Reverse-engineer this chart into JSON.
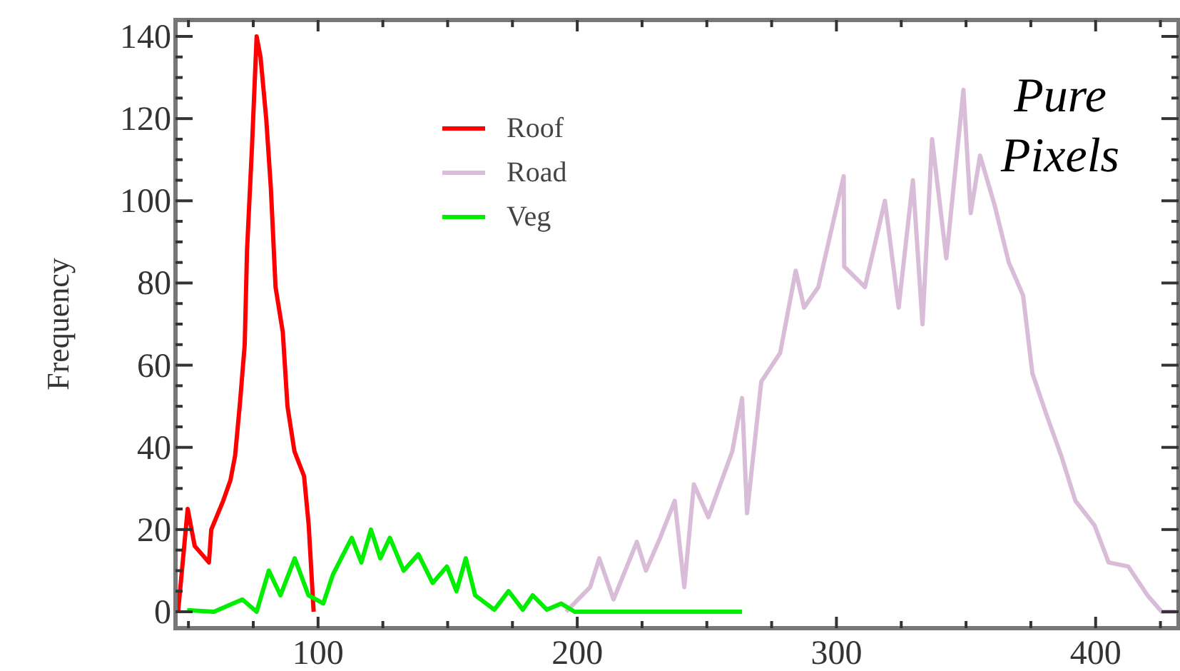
{
  "chart_data": {
    "type": "line",
    "ylabel": "Frequency",
    "annotations": [
      "Pure Pixels"
    ],
    "legend": "top",
    "grid": false,
    "xlim": [
      45,
      432
    ],
    "ylim": [
      -4,
      144
    ],
    "xticks": [
      {
        "value": 50,
        "label": null
      },
      {
        "value": 75,
        "label": null
      },
      100,
      {
        "value": 125,
        "label": null
      },
      {
        "value": 150,
        "label": null
      },
      {
        "value": 175,
        "label": null
      },
      200,
      {
        "value": 225,
        "label": null
      },
      {
        "value": 250,
        "label": null
      },
      {
        "value": 275,
        "label": null
      },
      300,
      {
        "value": 325,
        "label": null
      },
      {
        "value": 350,
        "label": null
      },
      {
        "value": 375,
        "label": null
      },
      400,
      {
        "value": 425,
        "label": null
      }
    ],
    "yticks": [
      0,
      {
        "value": 5,
        "label": null
      },
      {
        "value": 10,
        "label": null
      },
      {
        "value": 15,
        "label": null
      },
      20,
      {
        "value": 25,
        "label": null
      },
      {
        "value": 30,
        "label": null
      },
      {
        "value": 35,
        "label": null
      },
      40,
      {
        "value": 45,
        "label": null
      },
      {
        "value": 50,
        "label": null
      },
      {
        "value": 55,
        "label": null
      },
      60,
      {
        "value": 65,
        "label": null
      },
      {
        "value": 70,
        "label": null
      },
      {
        "value": 75,
        "label": null
      },
      80,
      {
        "value": 85,
        "label": null
      },
      {
        "value": 90,
        "label": null
      },
      {
        "value": 95,
        "label": null
      },
      100,
      {
        "value": 105,
        "label": null
      },
      {
        "value": 110,
        "label": null
      },
      {
        "value": 115,
        "label": null
      },
      120,
      {
        "value": 125,
        "label": null
      },
      {
        "value": 130,
        "label": null
      },
      {
        "value": 135,
        "label": null
      },
      140
    ],
    "series": [
      {
        "name": "Roof",
        "color": "#ff0000",
        "x": [
          46,
          49.7,
          52.4,
          57.9,
          58.8,
          63.4,
          66.2,
          68,
          69.9,
          71.7,
          72.6,
          74.5,
          76.3,
          77.8,
          80,
          81.8,
          83.6,
          86.4,
          88.2,
          90.9,
          94.6,
          96.4,
          98.3
        ],
        "values": [
          0,
          25,
          16,
          12,
          20,
          27,
          32,
          38,
          51,
          65,
          88,
          113,
          140,
          135,
          120,
          103,
          79,
          68,
          50,
          39,
          33,
          21,
          0
        ]
      },
      {
        "name": "Road",
        "color": "#d8bcd8",
        "x": [
          195.7,
          205,
          208.5,
          214,
          223,
          226.5,
          232,
          237.6,
          241.3,
          245,
          250.6,
          259.8,
          263.6,
          265.5,
          271,
          278.3,
          284.3,
          287.5,
          293,
          302.8,
          303,
          311,
          318.7,
          324,
          329.5,
          333.2,
          336.9,
          342.4,
          349,
          351.8,
          355.4,
          361,
          366.5,
          372,
          375.6,
          381,
          386.7,
          392.2,
          399.6,
          405,
          412.6,
          420,
          425.5,
          431
        ],
        "values": [
          0,
          6,
          13,
          3,
          17,
          10,
          18,
          27,
          6,
          31,
          23,
          39,
          52,
          24,
          56,
          63,
          83,
          74,
          79,
          106,
          84,
          79,
          100,
          74,
          105,
          70,
          115,
          86,
          127,
          97,
          111,
          99,
          85,
          77,
          58,
          48,
          38,
          27,
          21,
          12,
          11,
          4,
          0,
          0
        ]
      },
      {
        "name": "Veg",
        "color": "#00ee00",
        "x": [
          49.5,
          59.8,
          70.8,
          76.3,
          81,
          85.5,
          91,
          96.3,
          102,
          105.7,
          113,
          116.7,
          120.4,
          124,
          127.7,
          133,
          138.7,
          144.2,
          149.7,
          153.4,
          157,
          160.6,
          168,
          173.5,
          179,
          182.8,
          188.3,
          193.8,
          199,
          263.6
        ],
        "values": [
          0.4,
          0,
          3,
          0,
          10,
          4,
          13,
          4,
          2,
          9,
          18,
          12,
          20,
          13,
          18,
          10,
          14,
          7,
          11,
          5,
          13,
          4,
          0.5,
          5,
          0.5,
          4,
          0.5,
          2,
          0,
          0
        ]
      }
    ]
  }
}
